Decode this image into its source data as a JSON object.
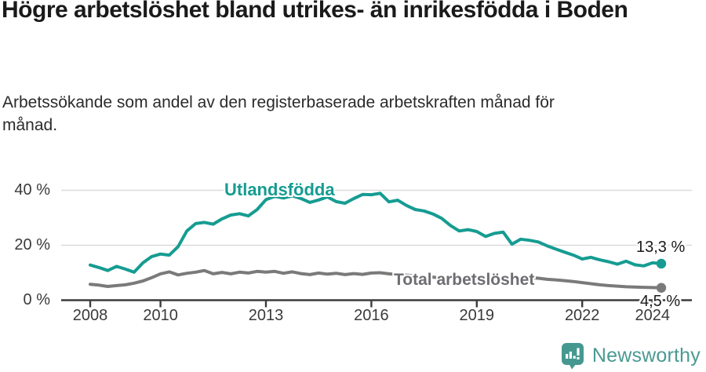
{
  "header": {
    "title": "Högre arbetslöshet bland utrikes- än inrikesfödda i Boden",
    "subtitle": "Arbetssökande som andel av den registerbaserade arbetskraften månad för månad."
  },
  "chart_data": {
    "type": "line",
    "title": "Högre arbetslöshet bland utrikes- än inrikesfödda i Boden",
    "y_unit": "%",
    "x_unit": "year",
    "ylim": [
      0,
      44
    ],
    "xlim": [
      2007.2,
      2025.1
    ],
    "grid": "horizontal",
    "legend_position": "inline-labels",
    "y_ticks": [
      {
        "value": 0,
        "label": "0 %"
      },
      {
        "value": 20,
        "label": "20 %"
      },
      {
        "value": 40,
        "label": "40 %"
      }
    ],
    "x_ticks": [
      {
        "value": 2008,
        "label": "2008"
      },
      {
        "value": 2010,
        "label": "2010"
      },
      {
        "value": 2013,
        "label": "2013"
      },
      {
        "value": 2016,
        "label": "2016"
      },
      {
        "value": 2019,
        "label": "2019"
      },
      {
        "value": 2022,
        "label": "2022"
      },
      {
        "value": 2024,
        "label": "2024"
      }
    ],
    "series": [
      {
        "name": "Utlandsfödda",
        "color": "#169C92",
        "end_label": "13,3 %",
        "end_value": 13.3,
        "x_start": 2008.0,
        "x_step": 0.25,
        "values": [
          12.8,
          11.9,
          10.8,
          12.3,
          11.3,
          10.2,
          13.6,
          15.9,
          16.8,
          16.4,
          19.5,
          25.2,
          27.9,
          28.3,
          27.7,
          29.6,
          31.0,
          31.5,
          30.7,
          33.0,
          36.6,
          37.8,
          37.2,
          38.0,
          37.0,
          35.6,
          36.5,
          37.6,
          35.9,
          35.3,
          37.0,
          38.5,
          38.4,
          38.9,
          35.8,
          36.4,
          34.5,
          33.0,
          32.5,
          31.4,
          29.8,
          27.2,
          25.2,
          25.7,
          25.0,
          23.2,
          24.3,
          24.8,
          20.4,
          22.2,
          21.8,
          21.2,
          19.8,
          18.6,
          17.5,
          16.4,
          15.0,
          15.6,
          14.7,
          14.0,
          13.1,
          14.2,
          12.9,
          12.5,
          13.6,
          13.3
        ]
      },
      {
        "name": "Total arbetslöshet",
        "color": "#7A7A7A",
        "end_label": "4,5 %",
        "end_value": 4.5,
        "x_start": 2008.0,
        "x_step": 0.25,
        "values": [
          5.8,
          5.5,
          5.0,
          5.3,
          5.6,
          6.2,
          7.0,
          8.2,
          9.6,
          10.3,
          9.2,
          9.8,
          10.2,
          10.8,
          9.6,
          10.1,
          9.6,
          10.2,
          9.9,
          10.5,
          10.2,
          10.5,
          9.8,
          10.3,
          9.7,
          9.3,
          9.9,
          9.5,
          9.8,
          9.3,
          9.7,
          9.4,
          9.9,
          10.0,
          9.6,
          9.3,
          9.1,
          8.9,
          8.7,
          8.4,
          8.1,
          7.9,
          7.8,
          7.7,
          7.6,
          7.5,
          7.5,
          7.6,
          7.9,
          8.3,
          8.2,
          8.0,
          7.6,
          7.4,
          7.1,
          6.8,
          6.4,
          6.0,
          5.6,
          5.3,
          5.1,
          4.9,
          4.8,
          4.7,
          4.6,
          4.5
        ]
      }
    ]
  },
  "footer": {
    "brand": "Newsworthy",
    "logo_icon": "speech-bubble-bar-chart-icon"
  }
}
